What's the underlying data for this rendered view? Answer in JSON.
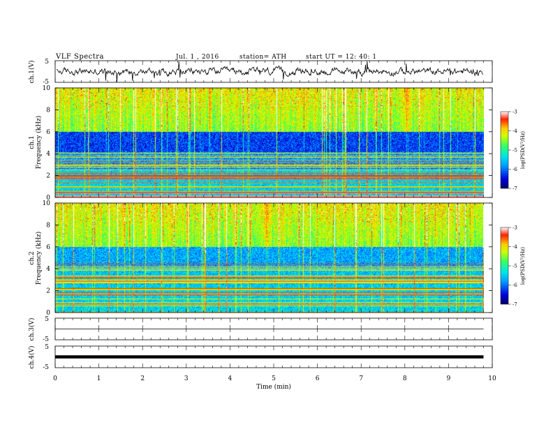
{
  "header": {
    "title": "VLF  Spectra",
    "date": "Jul.  1  , 2016",
    "station": "station= ATH",
    "start": "start  UT  =   12: 40: 1"
  },
  "colors": {
    "spectrogram": [
      "#000066",
      "#0000cc",
      "#0050ff",
      "#00b4ff",
      "#00e6e6",
      "#33ff66",
      "#aaff00",
      "#ffee00",
      "#ff9900",
      "#ff2200",
      "#ffffff"
    ],
    "trace": "#000000"
  },
  "chart_data": [
    {
      "type": "line",
      "panel": "ch1-waveform",
      "ylabel": "ch.1(V)",
      "ylim": [
        -5,
        5
      ],
      "yticks": [
        "5",
        "-5"
      ],
      "xlim": [
        0,
        10
      ]
    },
    {
      "type": "heatmap",
      "panel": "ch1-spectrogram",
      "ylabel_line1": "ch.1",
      "ylabel_line2": "Frequency  (kHz)",
      "ylim": [
        0,
        10
      ],
      "yticks": [
        "10",
        "8",
        "6",
        "4",
        "2",
        "0"
      ],
      "xlim": [
        0,
        9.8
      ],
      "colorbar": {
        "label": "log(PSD(V²/Hz)",
        "range": [
          -7,
          -3
        ],
        "ticks": [
          "-3",
          "-4",
          "-5",
          "-6",
          "-7"
        ]
      }
    },
    {
      "type": "heatmap",
      "panel": "ch2-spectrogram",
      "ylabel_line1": "ch.2",
      "ylabel_line2": "Frequency  (kHz)",
      "ylim": [
        0,
        10
      ],
      "yticks": [
        "10",
        "8",
        "6",
        "4",
        "2",
        "0"
      ],
      "xlim": [
        0,
        9.8
      ],
      "colorbar": {
        "label": "log(PSD(V²/Hz)",
        "range": [
          -7,
          -3
        ],
        "ticks": [
          "-3",
          "-4",
          "-5",
          "-6",
          "-7"
        ]
      }
    },
    {
      "type": "line",
      "panel": "ch3-waveform",
      "ylabel": "ch.3(V)",
      "ylim": [
        -5,
        5
      ],
      "yticks": [
        "5",
        "-5"
      ],
      "x": [
        0,
        9.8
      ],
      "y": [
        0,
        0
      ]
    },
    {
      "type": "line",
      "panel": "ch4-waveform",
      "ylabel": "ch.4(V)",
      "ylim": [
        -5,
        5
      ],
      "yticks": [
        "5",
        "-5"
      ],
      "x": [
        0,
        9.8
      ],
      "y": [
        0,
        0
      ]
    },
    {
      "type": "axis",
      "panel": "time-axis",
      "xlabel": "Time  (min)",
      "xlim": [
        0,
        10
      ],
      "xticks": [
        "0",
        "1",
        "2",
        "3",
        "4",
        "5",
        "6",
        "7",
        "8",
        "9",
        "10"
      ]
    }
  ]
}
